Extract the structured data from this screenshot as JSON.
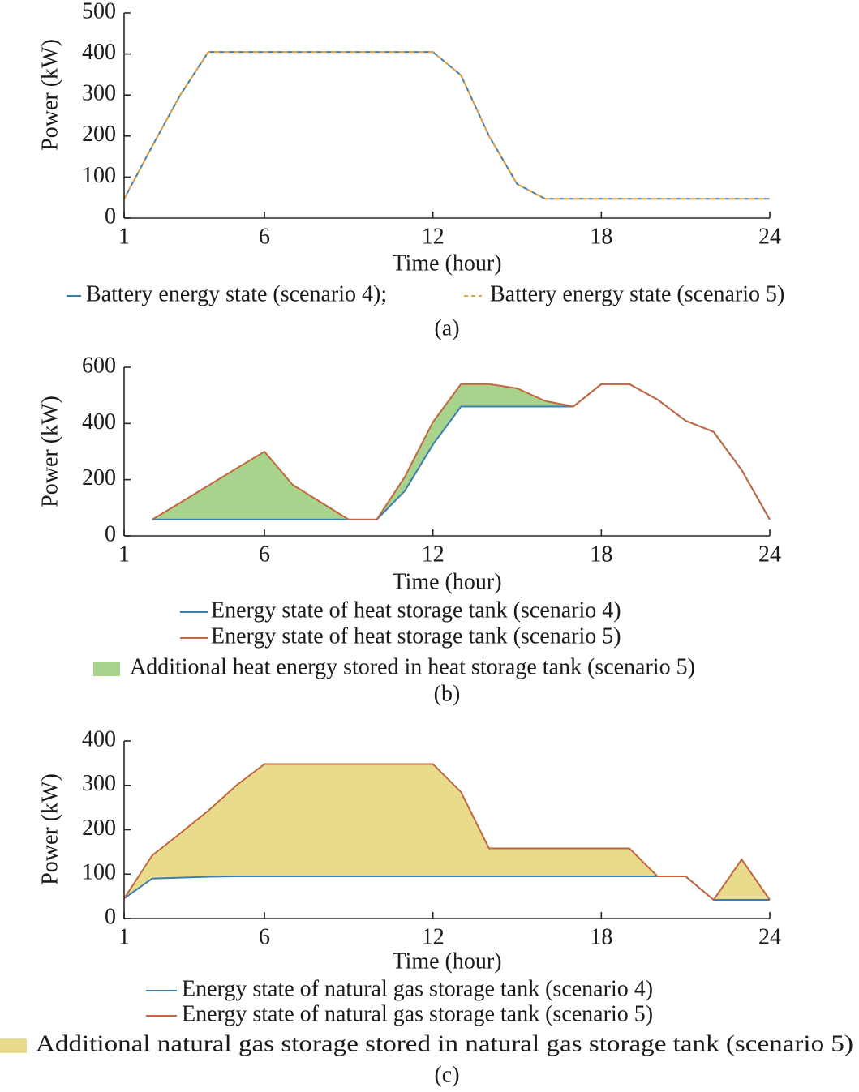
{
  "chart_data": [
    {
      "type": "line",
      "caption": "(a)",
      "xlabel": "Time (hour)",
      "ylabel": "Power (kW)",
      "x": [
        1,
        2,
        3,
        4,
        5,
        6,
        7,
        8,
        9,
        10,
        11,
        12,
        13,
        14,
        15,
        16,
        17,
        18,
        19,
        20,
        21,
        22,
        23,
        24
      ],
      "xlim": [
        1,
        24
      ],
      "xticks": [
        1,
        6,
        12,
        18,
        24
      ],
      "ylim": [
        0,
        500
      ],
      "yticks": [
        0,
        100,
        200,
        300,
        400,
        500
      ],
      "series": [
        {
          "name": "Battery energy state (scenario 4);",
          "color": "#3a7fb4",
          "linestyle": "solid",
          "values": [
            47,
            175,
            300,
            405,
            405,
            405,
            405,
            405,
            405,
            405,
            405,
            405,
            348,
            200,
            83,
            47,
            47,
            47,
            47,
            47,
            47,
            47,
            47,
            47
          ]
        },
        {
          "name": "Battery energy state (scenario 5)",
          "color": "#e8a33a",
          "linestyle": "dashed",
          "values": [
            47,
            175,
            300,
            405,
            405,
            405,
            405,
            405,
            405,
            405,
            405,
            405,
            348,
            200,
            83,
            47,
            47,
            47,
            47,
            47,
            47,
            47,
            47,
            47
          ]
        }
      ]
    },
    {
      "type": "line",
      "caption": "(b)",
      "xlabel": "Time (hour)",
      "ylabel": "Power (kW)",
      "x": [
        1,
        2,
        3,
        4,
        5,
        6,
        7,
        8,
        9,
        10,
        11,
        12,
        13,
        14,
        15,
        16,
        17,
        18,
        19,
        20,
        21,
        22,
        23,
        24
      ],
      "xlim": [
        1,
        24
      ],
      "xticks": [
        1,
        6,
        12,
        18,
        24
      ],
      "ylim": [
        0,
        600
      ],
      "yticks": [
        0,
        200,
        400,
        600
      ],
      "series": [
        {
          "name": "Energy state of heat storage tank (scenario 4)",
          "color": "#3a7fb4",
          "linestyle": "solid",
          "values": [
            null,
            58,
            58,
            58,
            58,
            58,
            58,
            58,
            58,
            58,
            160,
            325,
            460,
            460,
            460,
            460,
            460,
            540,
            540,
            485,
            410,
            370,
            234,
            58
          ]
        },
        {
          "name": "Energy state of heat storage tank (scenario 5)",
          "color": "#c4663f",
          "linestyle": "solid",
          "values": [
            null,
            58,
            118,
            179,
            240,
            300,
            182,
            120,
            58,
            58,
            210,
            405,
            540,
            540,
            525,
            480,
            460,
            540,
            540,
            485,
            410,
            370,
            234,
            58
          ]
        }
      ],
      "fill": {
        "name": "Additional heat energy stored in heat storage tank (scenario 5)",
        "color": "#a7d38c"
      }
    },
    {
      "type": "line",
      "caption": "(c)",
      "xlabel": "Time (hour)",
      "ylabel": "Power (kW)",
      "x": [
        1,
        2,
        3,
        4,
        5,
        6,
        7,
        8,
        9,
        10,
        11,
        12,
        13,
        14,
        15,
        16,
        17,
        18,
        19,
        20,
        21,
        22,
        23,
        24
      ],
      "xlim": [
        1,
        24
      ],
      "xticks": [
        1,
        6,
        12,
        18,
        24
      ],
      "ylim": [
        0,
        400
      ],
      "yticks": [
        0,
        100,
        200,
        300,
        400
      ],
      "series": [
        {
          "name": "Energy state of natural gas storage tank (scenario 4)",
          "color": "#3a7fb4",
          "linestyle": "solid",
          "values": [
            45,
            90,
            92,
            94,
            95,
            95,
            95,
            95,
            95,
            95,
            95,
            95,
            95,
            95,
            95,
            95,
            95,
            95,
            95,
            95,
            95,
            42,
            42,
            42
          ]
        },
        {
          "name": "Energy state of natural gas storage tank (scenario 5)",
          "color": "#c4663f",
          "linestyle": "solid",
          "values": [
            45,
            142,
            192,
            243,
            300,
            348,
            348,
            348,
            348,
            348,
            348,
            348,
            285,
            158,
            158,
            158,
            158,
            158,
            158,
            95,
            95,
            42,
            133,
            42
          ]
        }
      ],
      "fill": {
        "name": "Additional natural gas storage stored in natural gas storage tank (scenario 5)",
        "color": "#e8dc8c"
      }
    }
  ]
}
